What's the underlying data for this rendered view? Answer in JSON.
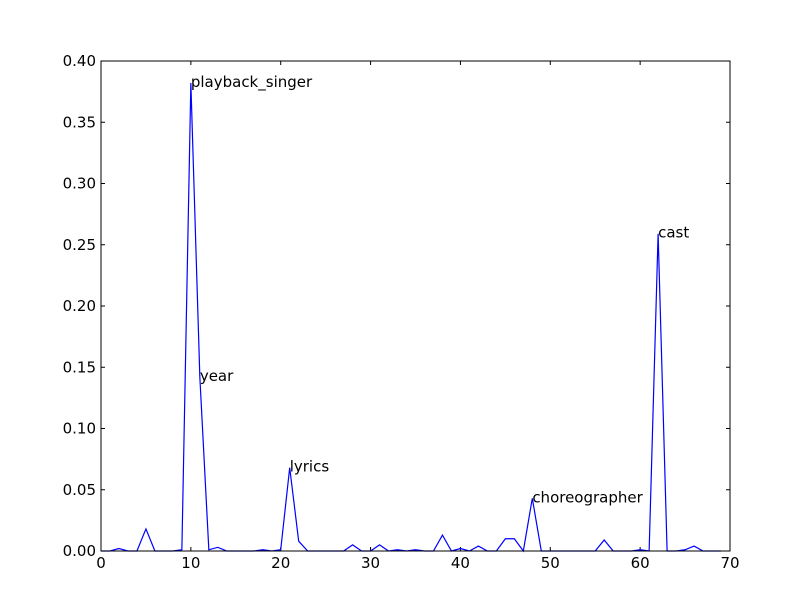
{
  "chart_data": {
    "type": "line",
    "title": "",
    "xlabel": "",
    "ylabel": "",
    "xlim": [
      0,
      70
    ],
    "ylim": [
      0,
      0.4
    ],
    "grid": false,
    "x_ticks": [
      0,
      10,
      20,
      30,
      40,
      50,
      60,
      70
    ],
    "x_tick_labels": [
      "0",
      "10",
      "20",
      "30",
      "40",
      "50",
      "60",
      "70"
    ],
    "y_ticks": [
      0,
      0.05,
      0.1,
      0.15,
      0.2,
      0.25,
      0.3,
      0.35,
      0.4
    ],
    "y_tick_labels": [
      "0.00",
      "0.05",
      "0.10",
      "0.15",
      "0.20",
      "0.25",
      "0.30",
      "0.35",
      "0.40"
    ],
    "series": [
      {
        "color": "#0000ff",
        "x": [
          0,
          1,
          2,
          3,
          4,
          5,
          6,
          7,
          8,
          9,
          10,
          11,
          12,
          13,
          14,
          15,
          16,
          17,
          18,
          19,
          20,
          21,
          22,
          23,
          24,
          25,
          26,
          27,
          28,
          29,
          30,
          31,
          32,
          33,
          34,
          35,
          36,
          37,
          38,
          39,
          40,
          41,
          42,
          43,
          44,
          45,
          46,
          47,
          48,
          49,
          50,
          51,
          52,
          53,
          54,
          55,
          56,
          57,
          58,
          59,
          60,
          61,
          62,
          63,
          64,
          65,
          66,
          67,
          68,
          69
        ],
        "y": [
          0,
          0,
          0.002,
          0,
          0,
          0.018,
          0,
          0,
          0,
          0.001,
          0.382,
          0.142,
          0.001,
          0.003,
          0,
          0,
          0,
          0,
          0.001,
          0,
          0.001,
          0.068,
          0.008,
          0,
          0,
          0,
          0,
          0,
          0.005,
          0,
          0,
          0.005,
          0,
          0.001,
          0,
          0.001,
          0,
          0,
          0.013,
          0,
          0.002,
          0,
          0.004,
          0,
          0,
          0.01,
          0.01,
          0,
          0.043,
          0,
          0,
          0,
          0,
          0,
          0,
          0,
          0.009,
          0,
          0,
          0,
          0.001,
          0,
          0.259,
          0,
          0,
          0.001,
          0.004,
          0,
          0,
          0
        ]
      }
    ],
    "annotations": [
      {
        "text": "playback_singer",
        "x": 10,
        "y": 0.382
      },
      {
        "text": "year",
        "x": 11,
        "y": 0.142
      },
      {
        "text": "lyrics",
        "x": 21,
        "y": 0.068
      },
      {
        "text": "choreographer",
        "x": 48,
        "y": 0.043
      },
      {
        "text": "cast",
        "x": 62,
        "y": 0.259
      }
    ]
  }
}
